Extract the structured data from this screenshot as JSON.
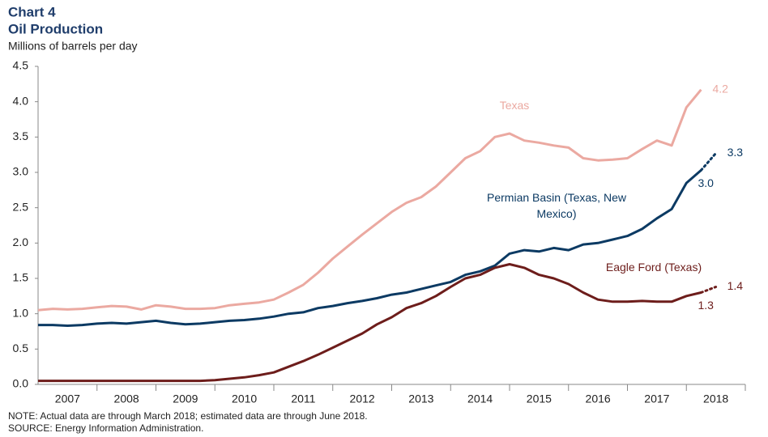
{
  "chart_data": {
    "type": "line",
    "title": "Chart 4",
    "subtitle": "Oil Production",
    "y_label": "Millions of barrels per day",
    "notes": [
      "NOTE: Actual data are through  March 2018; estimated data are through June 2018.",
      "SOURCE: Energy Information  Administration."
    ],
    "x": [
      2007,
      2007.25,
      2007.5,
      2007.75,
      2008,
      2008.25,
      2008.5,
      2008.75,
      2009,
      2009.25,
      2009.5,
      2009.75,
      2010,
      2010.25,
      2010.5,
      2010.75,
      2011,
      2011.25,
      2011.5,
      2011.75,
      2012,
      2012.25,
      2012.5,
      2012.75,
      2013,
      2013.25,
      2013.5,
      2013.75,
      2014,
      2014.25,
      2014.5,
      2014.75,
      2015,
      2015.25,
      2015.5,
      2015.75,
      2016,
      2016.25,
      2016.5,
      2016.75,
      2017,
      2017.25,
      2017.5,
      2017.75,
      2018,
      2018.25,
      2018.5
    ],
    "xlim": [
      2007,
      2019
    ],
    "xticks": [
      {
        "value": 2007.5,
        "label": "2007"
      },
      {
        "value": 2008.5,
        "label": "2008"
      },
      {
        "value": 2009.5,
        "label": "2009"
      },
      {
        "value": 2010.5,
        "label": "2010"
      },
      {
        "value": 2011.5,
        "label": "2011"
      },
      {
        "value": 2012.5,
        "label": "2012"
      },
      {
        "value": 2013.5,
        "label": "2013"
      },
      {
        "value": 2014.5,
        "label": "2014"
      },
      {
        "value": 2015.5,
        "label": "2015"
      },
      {
        "value": 2016.5,
        "label": "2016"
      },
      {
        "value": 2017.5,
        "label": "2017"
      },
      {
        "value": 2018.5,
        "label": "2018"
      }
    ],
    "ylim": [
      0,
      4.5
    ],
    "yticks": [
      {
        "value": 0,
        "label": "0.0"
      },
      0.5,
      {
        "value": 1,
        "label": "1.0"
      },
      1.5,
      {
        "value": 2,
        "label": "2.0"
      },
      2.5,
      {
        "value": 3,
        "label": "3.0"
      },
      3.5,
      {
        "value": 4,
        "label": "4.0"
      },
      4.5
    ],
    "series": [
      {
        "name": "Texas",
        "color": "#eba9a1",
        "values": [
          1.05,
          1.07,
          1.06,
          1.07,
          1.09,
          1.11,
          1.1,
          1.06,
          1.12,
          1.1,
          1.07,
          1.07,
          1.08,
          1.12,
          1.14,
          1.16,
          1.2,
          1.3,
          1.41,
          1.58,
          1.78,
          1.95,
          2.12,
          2.28,
          2.44,
          2.57,
          2.65,
          2.8,
          3.0,
          3.2,
          3.3,
          3.5,
          3.55,
          3.45,
          3.42,
          3.38,
          3.35,
          3.2,
          3.17,
          3.18,
          3.2,
          3.33,
          3.45,
          3.38,
          3.92,
          4.17,
          null
        ],
        "value_labels": [
          null,
          null,
          null,
          null,
          null,
          null,
          null,
          null,
          null,
          null,
          null,
          null,
          null,
          null,
          null,
          null,
          null,
          null,
          null,
          null,
          null,
          null,
          null,
          null,
          null,
          null,
          null,
          null,
          null,
          null,
          null,
          null,
          null,
          null,
          null,
          null,
          null,
          null,
          null,
          null,
          null,
          null,
          null,
          null,
          null,
          "4.2",
          null
        ]
      },
      {
        "name": "Permian Basin (Texas, New Mexico)",
        "color": "#0c3a63",
        "values": [
          0.84,
          0.84,
          0.83,
          0.84,
          0.86,
          0.87,
          0.86,
          0.88,
          0.9,
          0.87,
          0.85,
          0.86,
          0.88,
          0.9,
          0.91,
          0.93,
          0.96,
          1.0,
          1.02,
          1.08,
          1.11,
          1.15,
          1.18,
          1.22,
          1.27,
          1.3,
          1.35,
          1.4,
          1.45,
          1.55,
          1.6,
          1.68,
          1.85,
          1.9,
          1.88,
          1.93,
          1.9,
          1.98,
          2.0,
          2.05,
          2.1,
          2.2,
          2.35,
          2.48,
          2.85,
          3.03,
          null
        ],
        "value_labels": [
          null,
          null,
          null,
          null,
          null,
          null,
          null,
          null,
          null,
          null,
          null,
          null,
          null,
          null,
          null,
          null,
          null,
          null,
          null,
          null,
          null,
          null,
          null,
          null,
          null,
          null,
          null,
          null,
          null,
          null,
          null,
          null,
          null,
          null,
          null,
          null,
          null,
          null,
          null,
          null,
          null,
          null,
          null,
          null,
          null,
          "3.0",
          null
        ],
        "estimates": [
          null,
          null,
          null,
          null,
          null,
          null,
          null,
          null,
          null,
          null,
          null,
          null,
          null,
          null,
          null,
          null,
          null,
          null,
          null,
          null,
          null,
          null,
          null,
          null,
          null,
          null,
          null,
          null,
          null,
          null,
          null,
          null,
          null,
          null,
          null,
          null,
          null,
          null,
          null,
          null,
          null,
          null,
          null,
          null,
          null,
          3.03,
          3.27
        ],
        "estimate_labels": [
          null,
          null,
          null,
          null,
          null,
          null,
          null,
          null,
          null,
          null,
          null,
          null,
          null,
          null,
          null,
          null,
          null,
          null,
          null,
          null,
          null,
          null,
          null,
          null,
          null,
          null,
          null,
          null,
          null,
          null,
          null,
          null,
          null,
          null,
          null,
          null,
          null,
          null,
          null,
          null,
          null,
          null,
          null,
          null,
          null,
          null,
          "3.3"
        ]
      },
      {
        "name": "Eagle Ford (Texas)",
        "color": "#6d1d1b",
        "values": [
          0.05,
          0.05,
          0.05,
          0.05,
          0.05,
          0.05,
          0.05,
          0.05,
          0.05,
          0.05,
          0.05,
          0.05,
          0.06,
          0.08,
          0.1,
          0.13,
          0.17,
          0.25,
          0.33,
          0.42,
          0.52,
          0.62,
          0.72,
          0.85,
          0.95,
          1.08,
          1.15,
          1.25,
          1.38,
          1.5,
          1.55,
          1.65,
          1.7,
          1.65,
          1.55,
          1.5,
          1.42,
          1.3,
          1.2,
          1.17,
          1.17,
          1.18,
          1.17,
          1.17,
          1.25,
          1.3,
          null
        ],
        "value_labels": [
          null,
          null,
          null,
          null,
          null,
          null,
          null,
          null,
          null,
          null,
          null,
          null,
          null,
          null,
          null,
          null,
          null,
          null,
          null,
          null,
          null,
          null,
          null,
          null,
          null,
          null,
          null,
          null,
          null,
          null,
          null,
          null,
          null,
          null,
          null,
          null,
          null,
          null,
          null,
          null,
          null,
          null,
          null,
          null,
          null,
          "1.3",
          null
        ],
        "estimates": [
          null,
          null,
          null,
          null,
          null,
          null,
          null,
          null,
          null,
          null,
          null,
          null,
          null,
          null,
          null,
          null,
          null,
          null,
          null,
          null,
          null,
          null,
          null,
          null,
          null,
          null,
          null,
          null,
          null,
          null,
          null,
          null,
          null,
          null,
          null,
          null,
          null,
          null,
          null,
          null,
          null,
          null,
          null,
          null,
          null,
          1.3,
          1.38
        ],
        "estimate_labels": [
          null,
          null,
          null,
          null,
          null,
          null,
          null,
          null,
          null,
          null,
          null,
          null,
          null,
          null,
          null,
          null,
          null,
          null,
          null,
          null,
          null,
          null,
          null,
          null,
          null,
          null,
          null,
          null,
          null,
          null,
          null,
          null,
          null,
          null,
          null,
          null,
          null,
          null,
          null,
          null,
          null,
          null,
          null,
          null,
          null,
          null,
          "1.4"
        ]
      }
    ]
  }
}
